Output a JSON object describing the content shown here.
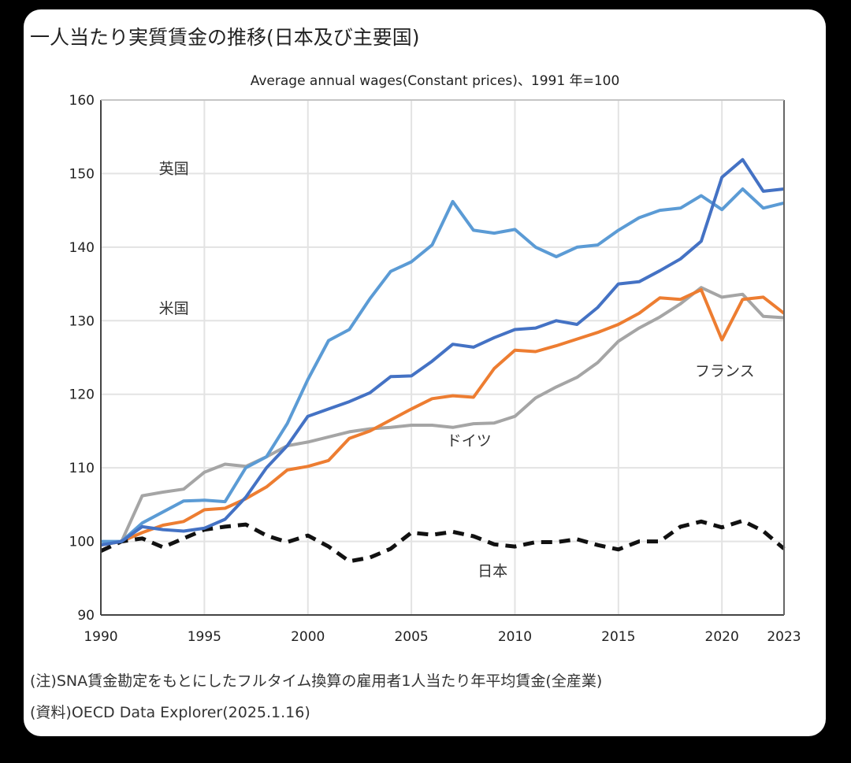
{
  "title": "一人当たり実質賃金の推移(日本及び主要国)",
  "note": "(注)SNA賃金勘定をもとにしたフルタイム換算の雇用者1人当たり年平均賃金(全産業)",
  "source": "(資料)OECD Data Explorer(2025.1.16)",
  "chart_data": {
    "type": "line",
    "subtitle": "Average annual wages(Constant prices)、1991 年=100",
    "xlim": [
      1990,
      2023
    ],
    "ylim": [
      90,
      160
    ],
    "x_ticks": [
      "1990",
      "1995",
      "2000",
      "2005",
      "2010",
      "2015",
      "2020",
      "2023"
    ],
    "y_ticks": [
      "90",
      "100",
      "110",
      "120",
      "130",
      "140",
      "150",
      "160"
    ],
    "grid": true,
    "x": [
      1990,
      1991,
      1992,
      1993,
      1994,
      1995,
      1996,
      1997,
      1998,
      1999,
      2000,
      2001,
      2002,
      2003,
      2004,
      2005,
      2006,
      2007,
      2008,
      2009,
      2010,
      2011,
      2012,
      2013,
      2014,
      2015,
      2016,
      2017,
      2018,
      2019,
      2020,
      2021,
      2022,
      2023
    ],
    "series": [
      {
        "name": "英国",
        "color": "#5b9bd5",
        "dash": false,
        "label_at": [
          1992.8,
          150
        ],
        "values": [
          100,
          100,
          102.5,
          104,
          105.5,
          105.6,
          105.4,
          110,
          111.5,
          116,
          122,
          127.3,
          128.8,
          133,
          136.7,
          138,
          140.3,
          146.2,
          142.3,
          141.9,
          142.4,
          140,
          138.7,
          140,
          140.3,
          142.3,
          144,
          145,
          145.3,
          147,
          145.1,
          147.9,
          145.3,
          146
        ]
      },
      {
        "name": "米国",
        "color": "#4472c4",
        "dash": false,
        "label_at": [
          1992.8,
          131
        ],
        "values": [
          99.5,
          100,
          102,
          101.6,
          101.4,
          101.8,
          103,
          106,
          110,
          113,
          117,
          118,
          119,
          120.2,
          122.4,
          122.5,
          124.5,
          126.8,
          126.4,
          127.7,
          128.8,
          129,
          130,
          129.5,
          131.8,
          135,
          135.3,
          136.8,
          138.4,
          140.8,
          149.5,
          151.9,
          147.6,
          147.9
        ]
      },
      {
        "name": "フランス",
        "color": "#ed7d31",
        "dash": false,
        "label_at": [
          2018.7,
          122.5
        ],
        "values": [
          99.5,
          100,
          101.2,
          102.2,
          102.7,
          104.3,
          104.5,
          105.8,
          107.4,
          109.7,
          110.2,
          111,
          114,
          115,
          116.5,
          118,
          119.4,
          119.8,
          119.6,
          123.5,
          126,
          125.8,
          126.6,
          127.5,
          128.4,
          129.5,
          131,
          133.1,
          132.9,
          134.2,
          127.4,
          132.9,
          133.2,
          131
        ]
      },
      {
        "name": "ドイツ",
        "color": "#a5a5a5",
        "dash": false,
        "label_at": [
          2006.7,
          113
        ],
        "values": [
          99.5,
          100,
          106.2,
          106.7,
          107.1,
          109.4,
          110.5,
          110.2,
          111.5,
          113,
          113.5,
          114.2,
          114.9,
          115.3,
          115.5,
          115.8,
          115.8,
          115.5,
          116,
          116.1,
          117,
          119.5,
          121,
          122.3,
          124.3,
          127.2,
          129,
          130.5,
          132.3,
          134.5,
          133.2,
          133.6,
          130.6,
          130.4
        ]
      },
      {
        "name": "日本",
        "color": "#111111",
        "dash": true,
        "label_at": [
          2008.2,
          95.3
        ],
        "values": [
          98.7,
          100,
          100.4,
          99.2,
          100.4,
          101.6,
          102,
          102.3,
          100.8,
          99.9,
          100.8,
          99.3,
          97.3,
          97.8,
          99,
          101.2,
          100.9,
          101.3,
          100.7,
          99.6,
          99.3,
          99.9,
          99.9,
          100.3,
          99.5,
          98.9,
          100,
          100,
          102,
          102.7,
          101.9,
          102.8,
          101.4,
          99
        ]
      }
    ]
  }
}
